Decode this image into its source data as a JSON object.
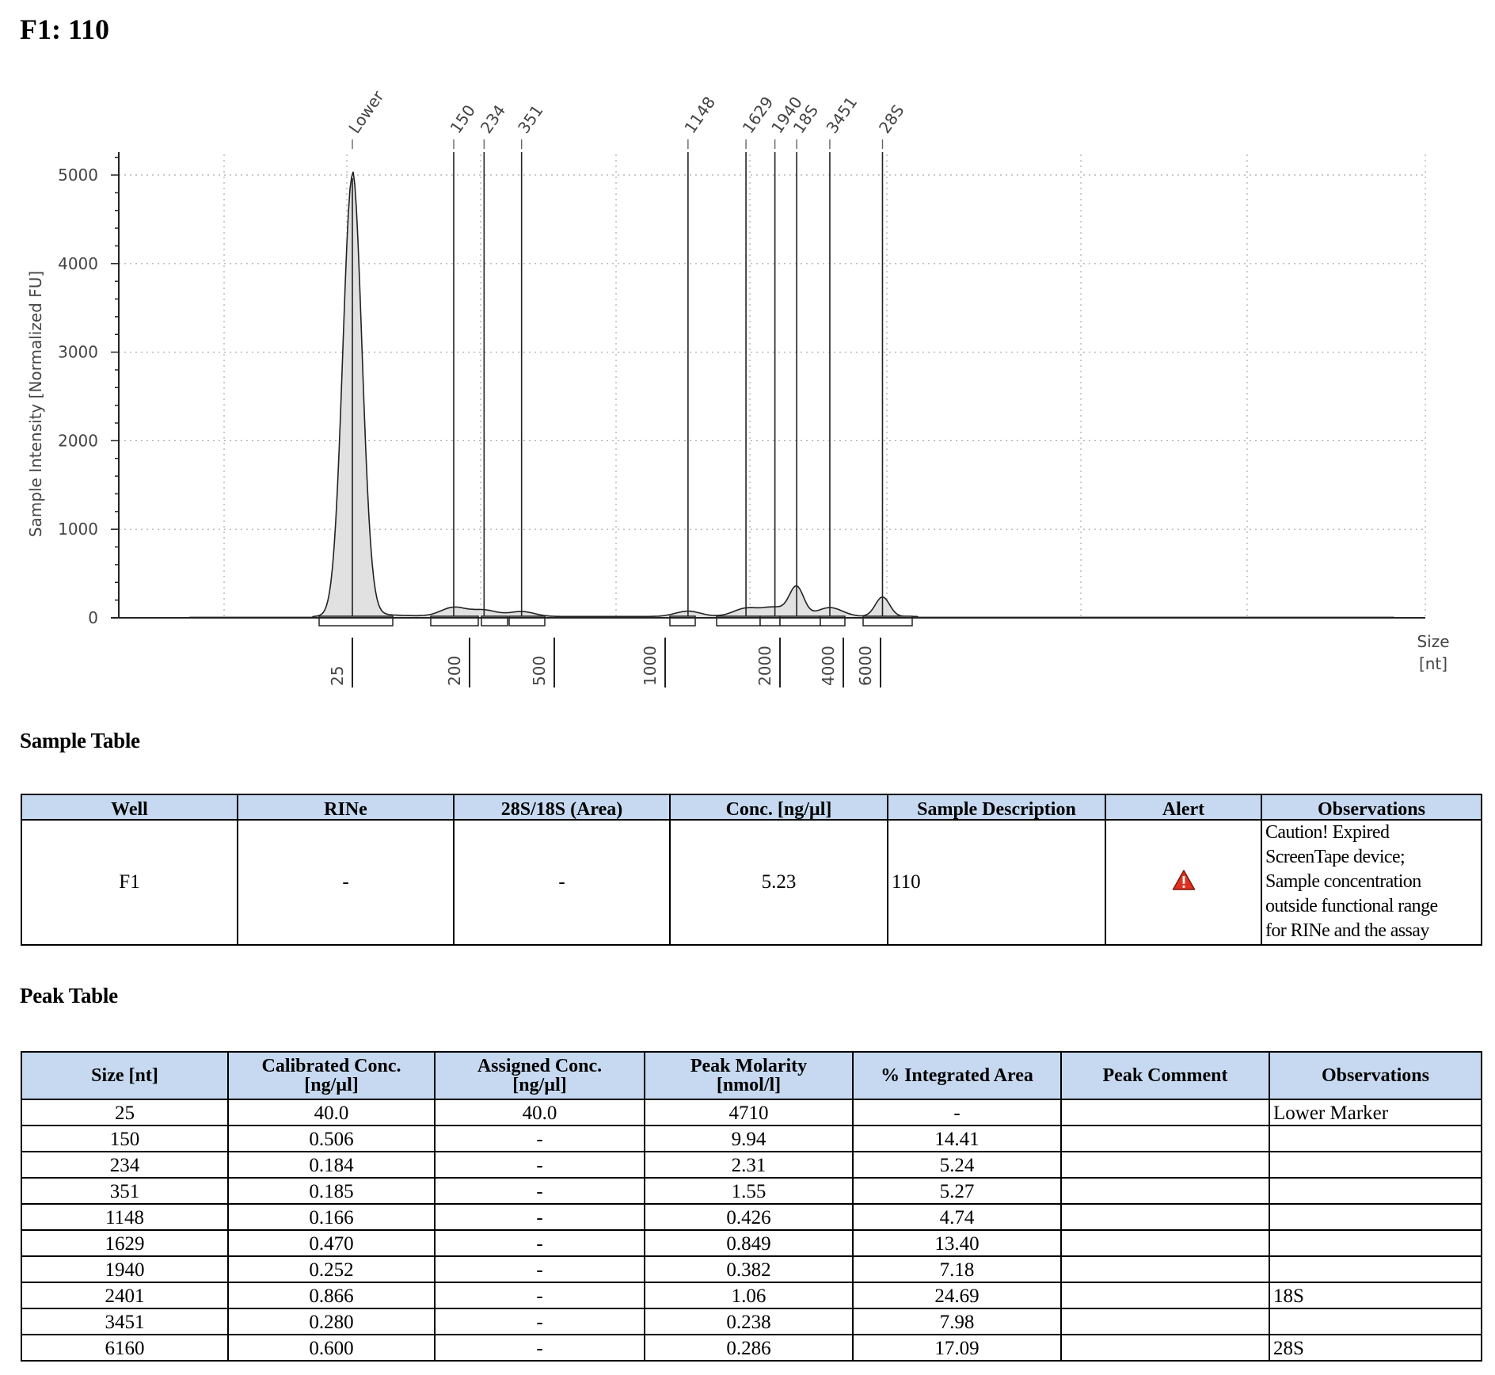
{
  "page": {
    "title": "F1: 110"
  },
  "chart_data": {
    "type": "line",
    "xlabel": "Size [nt]",
    "ylabel": "Sample Intensity [Normalized FU]",
    "ylim": [
      0,
      5000
    ],
    "yticks": [
      0,
      1000,
      2000,
      3000,
      4000,
      5000
    ],
    "xticks": [
      "25",
      "200",
      "500",
      "1000",
      "2000",
      "4000",
      "6000"
    ],
    "grid": true,
    "peaks": [
      {
        "label": "Lower",
        "size": 25,
        "intensity": 4980
      },
      {
        "label": "150",
        "size": 150,
        "intensity": 100
      },
      {
        "label": "234",
        "size": 234,
        "intensity": 70
      },
      {
        "label": "351",
        "size": 351,
        "intensity": 55
      },
      {
        "label": "1148",
        "size": 1148,
        "intensity": 60
      },
      {
        "label": "1629",
        "size": 1629,
        "intensity": 90
      },
      {
        "label": "1940",
        "size": 1940,
        "intensity": 100
      },
      {
        "label": "18S",
        "size": 2401,
        "intensity": 320
      },
      {
        "label": "3451",
        "size": 3451,
        "intensity": 100
      },
      {
        "label": "28S",
        "size": 6160,
        "intensity": 220
      }
    ]
  },
  "sample_table": {
    "title": "Sample Table",
    "headers": [
      "Well",
      "RINe",
      "28S/18S (Area)",
      "Conc. [ng/µl]",
      "Sample Description",
      "Alert",
      "Observations"
    ],
    "row": {
      "well": "F1",
      "rine": "-",
      "ratio": "-",
      "conc": "5.23",
      "description": "110",
      "alert_icon": "warning-triangle-icon",
      "alert_color": "#e0301e",
      "observations": [
        "Caution! Expired",
        "ScreenTape device;",
        "Sample concentration",
        "outside functional range",
        "for RINe and the assay"
      ]
    }
  },
  "peak_table": {
    "title": "Peak Table",
    "headers": [
      [
        "Size [nt]"
      ],
      [
        "Calibrated Conc.",
        "[ng/µl]"
      ],
      [
        "Assigned Conc.",
        "[ng/µl]"
      ],
      [
        "Peak Molarity",
        "[nmol/l]"
      ],
      [
        "% Integrated Area"
      ],
      [
        "Peak Comment"
      ],
      [
        "Observations"
      ]
    ],
    "rows": [
      [
        "25",
        "40.0",
        "40.0",
        "4710",
        "-",
        "",
        "Lower Marker"
      ],
      [
        "150",
        "0.506",
        "-",
        "9.94",
        "14.41",
        "",
        ""
      ],
      [
        "234",
        "0.184",
        "-",
        "2.31",
        "5.24",
        "",
        ""
      ],
      [
        "351",
        "0.185",
        "-",
        "1.55",
        "5.27",
        "",
        ""
      ],
      [
        "1148",
        "0.166",
        "-",
        "0.426",
        "4.74",
        "",
        ""
      ],
      [
        "1629",
        "0.470",
        "-",
        "0.849",
        "13.40",
        "",
        ""
      ],
      [
        "1940",
        "0.252",
        "-",
        "0.382",
        "7.18",
        "",
        ""
      ],
      [
        "2401",
        "0.866",
        "-",
        "1.06",
        "24.69",
        "",
        "18S"
      ],
      [
        "3451",
        "0.280",
        "-",
        "0.238",
        "7.98",
        "",
        ""
      ],
      [
        "6160",
        "0.600",
        "-",
        "0.286",
        "17.09",
        "",
        "28S"
      ]
    ]
  }
}
